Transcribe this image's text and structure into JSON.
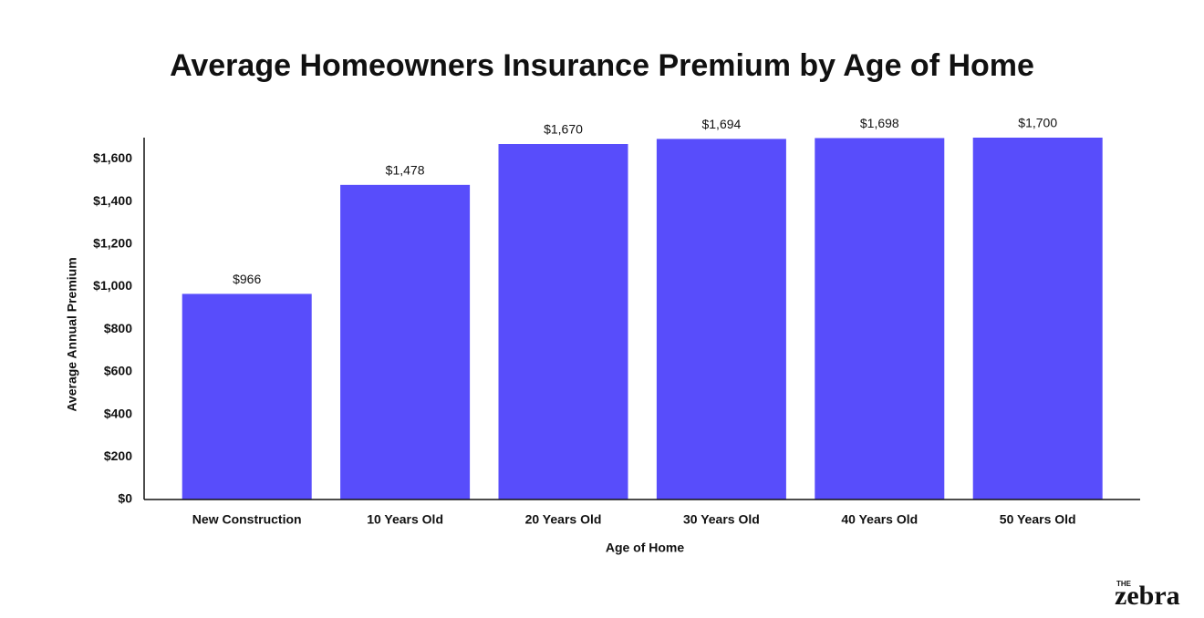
{
  "chart_data": {
    "type": "bar",
    "title": "Average Homeowners Insurance Premium by Age of Home",
    "x_label": "Age of Home",
    "y_label": "Average Annual Premium",
    "categories": [
      "New Construction",
      "10 Years Old",
      "20 Years Old",
      "30 Years Old",
      "40 Years Old",
      "50 Years Old"
    ],
    "values": [
      966,
      1478,
      1670,
      1694,
      1698,
      1700
    ],
    "value_labels": [
      "$966",
      "$1,478",
      "$1,670",
      "$1,694",
      "$1,698",
      "$1,700"
    ],
    "color": "#584dfb",
    "ylim": [
      0,
      1700
    ],
    "yticks": [
      {
        "value": 0,
        "label": "$0"
      },
      {
        "value": 200,
        "label": "$200"
      },
      {
        "value": 400,
        "label": "$400"
      },
      {
        "value": 600,
        "label": "$600"
      },
      {
        "value": 800,
        "label": "$800"
      },
      {
        "value": 1000,
        "label": "$1,000"
      },
      {
        "value": 1200,
        "label": "$1,200"
      },
      {
        "value": 1400,
        "label": "$1,400"
      },
      {
        "value": 1600,
        "label": "$1,600"
      }
    ],
    "grid": false
  },
  "logo": {
    "small": "THE",
    "main": "zebra"
  }
}
